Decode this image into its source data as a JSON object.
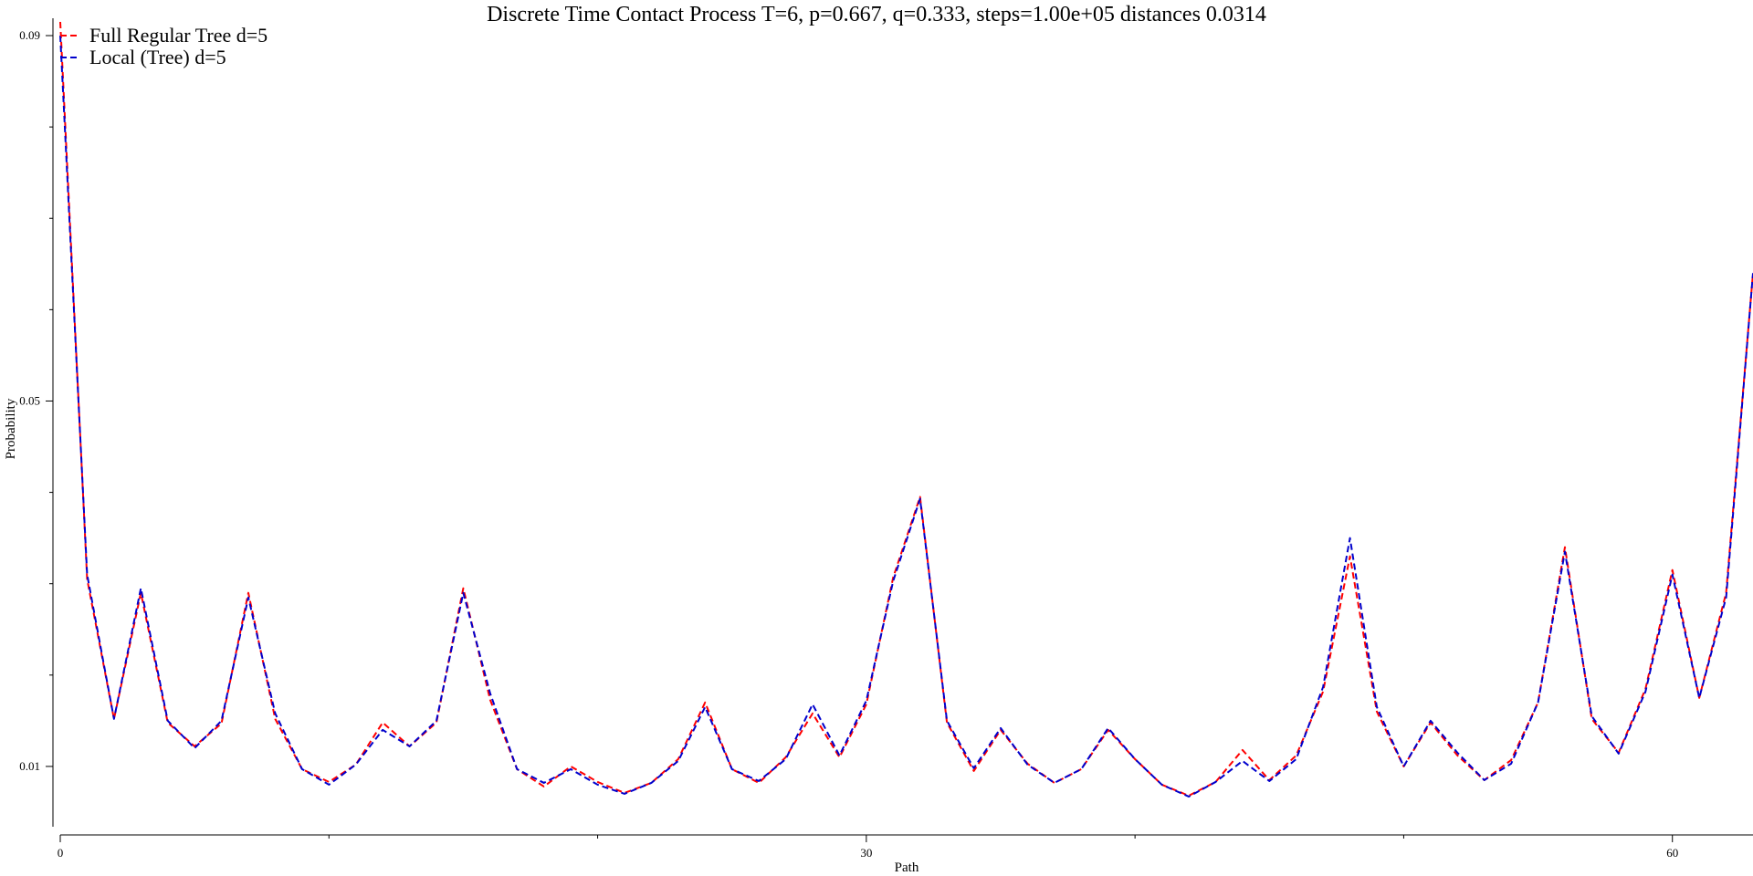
{
  "chart_data": {
    "type": "line",
    "title": "Discrete Time Contact Process T=6, p=0.667, q=0.333, steps=1.00e+05 distances 0.0314",
    "xlabel": "Path",
    "ylabel": "Probability",
    "xlim": [
      0,
      63
    ],
    "ylim": [
      0.0027,
      0.0917
    ],
    "x_ticks": [
      0,
      30,
      60
    ],
    "x_tick_labels": [
      "0",
      "30",
      "60"
    ],
    "x_minor_ticks": [
      10,
      20,
      40,
      50
    ],
    "y_ticks": [
      0.01,
      0.05,
      0.09
    ],
    "y_tick_labels": [
      "0.01",
      "0.05",
      "0.09"
    ],
    "y_minor_ticks": [
      0.02,
      0.03,
      0.04,
      0.06,
      0.07,
      0.08
    ],
    "grid": false,
    "legend_position": "top-left",
    "x": [
      0,
      1,
      2,
      3,
      4,
      5,
      6,
      7,
      8,
      9,
      10,
      11,
      12,
      13,
      14,
      15,
      16,
      17,
      18,
      19,
      20,
      21,
      22,
      23,
      24,
      25,
      26,
      27,
      28,
      29,
      30,
      31,
      32,
      33,
      34,
      35,
      36,
      37,
      38,
      39,
      40,
      41,
      42,
      43,
      44,
      45,
      46,
      47,
      48,
      49,
      50,
      51,
      52,
      53,
      54,
      55,
      56,
      57,
      58,
      59,
      60,
      61,
      62,
      63
    ],
    "series": [
      {
        "name": "Full Regular Tree d=5",
        "color": "#ff0000",
        "values": [
          0.0915,
          0.0305,
          0.0152,
          0.029,
          0.0148,
          0.0122,
          0.0147,
          0.029,
          0.0152,
          0.0097,
          0.0083,
          0.0102,
          0.0148,
          0.0122,
          0.0148,
          0.0295,
          0.0173,
          0.0097,
          0.0078,
          0.01,
          0.0083,
          0.0071,
          0.0082,
          0.0108,
          0.017,
          0.0097,
          0.0082,
          0.011,
          0.0158,
          0.011,
          0.0168,
          0.0307,
          0.0395,
          0.0148,
          0.0095,
          0.014,
          0.0103,
          0.0082,
          0.0097,
          0.014,
          0.0108,
          0.008,
          0.0068,
          0.0083,
          0.0118,
          0.0085,
          0.0112,
          0.0182,
          0.033,
          0.016,
          0.01,
          0.0148,
          0.0112,
          0.0085,
          0.0107,
          0.017,
          0.034,
          0.0152,
          0.0115,
          0.0185,
          0.0315,
          0.0175,
          0.029,
          0.064
        ]
      },
      {
        "name": "Local (Tree) d=5",
        "color": "#0000cc",
        "values": [
          0.09,
          0.031,
          0.0152,
          0.0295,
          0.015,
          0.012,
          0.015,
          0.0285,
          0.0158,
          0.0097,
          0.008,
          0.0102,
          0.014,
          0.0122,
          0.015,
          0.029,
          0.018,
          0.0097,
          0.0082,
          0.0097,
          0.008,
          0.007,
          0.0082,
          0.0106,
          0.0165,
          0.0097,
          0.0084,
          0.0108,
          0.0168,
          0.0112,
          0.0172,
          0.0303,
          0.0393,
          0.015,
          0.0098,
          0.0142,
          0.0102,
          0.0082,
          0.0097,
          0.0142,
          0.0108,
          0.008,
          0.0067,
          0.0083,
          0.0106,
          0.0084,
          0.0108,
          0.0187,
          0.035,
          0.0165,
          0.01,
          0.015,
          0.0115,
          0.0085,
          0.0103,
          0.017,
          0.0335,
          0.0155,
          0.0114,
          0.0182,
          0.031,
          0.0175,
          0.0285,
          0.064
        ]
      }
    ]
  }
}
